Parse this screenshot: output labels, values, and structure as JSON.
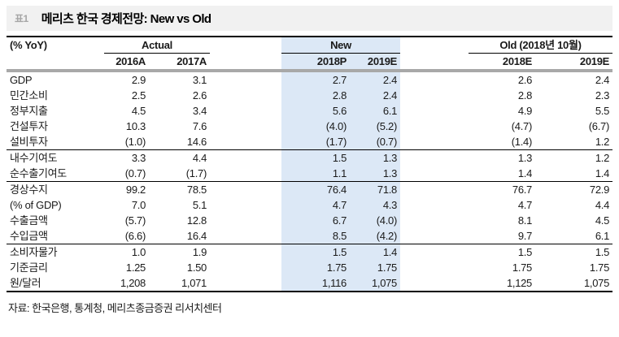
{
  "title_bar": {
    "tag": "표1",
    "title": "메리츠 한국 경제전망: New vs Old"
  },
  "table": {
    "unit_label": "(% YoY)",
    "groups": [
      {
        "label": "Actual",
        "cols": [
          "2016A",
          "2017A"
        ],
        "highlight": false
      },
      {
        "label": "New",
        "cols": [
          "2018P",
          "2019E"
        ],
        "highlight": true
      },
      {
        "label": "Old (2018년 10월)",
        "cols": [
          "2018E",
          "2019E"
        ],
        "highlight": false
      }
    ],
    "rows": [
      {
        "label": "GDP",
        "values": [
          "2.9",
          "3.1",
          "2.7",
          "2.4",
          "2.6",
          "2.4"
        ],
        "divider_below": false
      },
      {
        "label": "민간소비",
        "values": [
          "2.5",
          "2.6",
          "2.8",
          "2.4",
          "2.8",
          "2.3"
        ],
        "divider_below": false
      },
      {
        "label": "정부지출",
        "values": [
          "4.5",
          "3.4",
          "5.6",
          "6.1",
          "4.9",
          "5.5"
        ],
        "divider_below": false
      },
      {
        "label": "건설투자",
        "values": [
          "10.3",
          "7.6",
          "(4.0)",
          "(5.2)",
          "(4.7)",
          "(6.7)"
        ],
        "divider_below": false
      },
      {
        "label": "설비투자",
        "values": [
          "(1.0)",
          "14.6",
          "(1.7)",
          "(0.7)",
          "(1.4)",
          "1.2"
        ],
        "divider_below": true
      },
      {
        "label": "내수기여도",
        "values": [
          "3.3",
          "4.4",
          "1.5",
          "1.3",
          "1.3",
          "1.2"
        ],
        "divider_below": false
      },
      {
        "label": "순수출기여도",
        "values": [
          "(0.7)",
          "(1.7)",
          "1.1",
          "1.3",
          "1.4",
          "1.4"
        ],
        "divider_below": true
      },
      {
        "label": "경상수지",
        "values": [
          "99.2",
          "78.5",
          "76.4",
          "71.8",
          "76.7",
          "72.9"
        ],
        "divider_below": false
      },
      {
        "label": "(% of GDP)",
        "values": [
          "7.0",
          "5.1",
          "4.7",
          "4.3",
          "4.7",
          "4.4"
        ],
        "divider_below": false
      },
      {
        "label": "수출금액",
        "values": [
          "(5.7)",
          "12.8",
          "6.7",
          "(4.0)",
          "8.1",
          "4.5"
        ],
        "divider_below": false
      },
      {
        "label": "수입금액",
        "values": [
          "(6.6)",
          "16.4",
          "8.5",
          "(4.2)",
          "9.7",
          "6.1"
        ],
        "divider_below": true
      },
      {
        "label": "소비자물가",
        "values": [
          "1.0",
          "1.9",
          "1.5",
          "1.4",
          "1.5",
          "1.5"
        ],
        "divider_below": false
      },
      {
        "label": "기준금리",
        "values": [
          "1.25",
          "1.50",
          "1.75",
          "1.75",
          "1.75",
          "1.75"
        ],
        "divider_below": false
      },
      {
        "label": "원/달러",
        "values": [
          "1,208",
          "1,071",
          "1,116",
          "1,075",
          "1,125",
          "1,075"
        ],
        "divider_below": false
      }
    ]
  },
  "footer": {
    "source": "자료: 한국은행, 통계청, 메리츠종금증권 리서치센터"
  },
  "colors": {
    "highlight_blue": "#dce8f6",
    "header_rule_gray": "#a8a8a8",
    "banner_bg": "#f1f1f1",
    "tag_gray": "#a6a6a6",
    "rule_black": "#000000"
  }
}
